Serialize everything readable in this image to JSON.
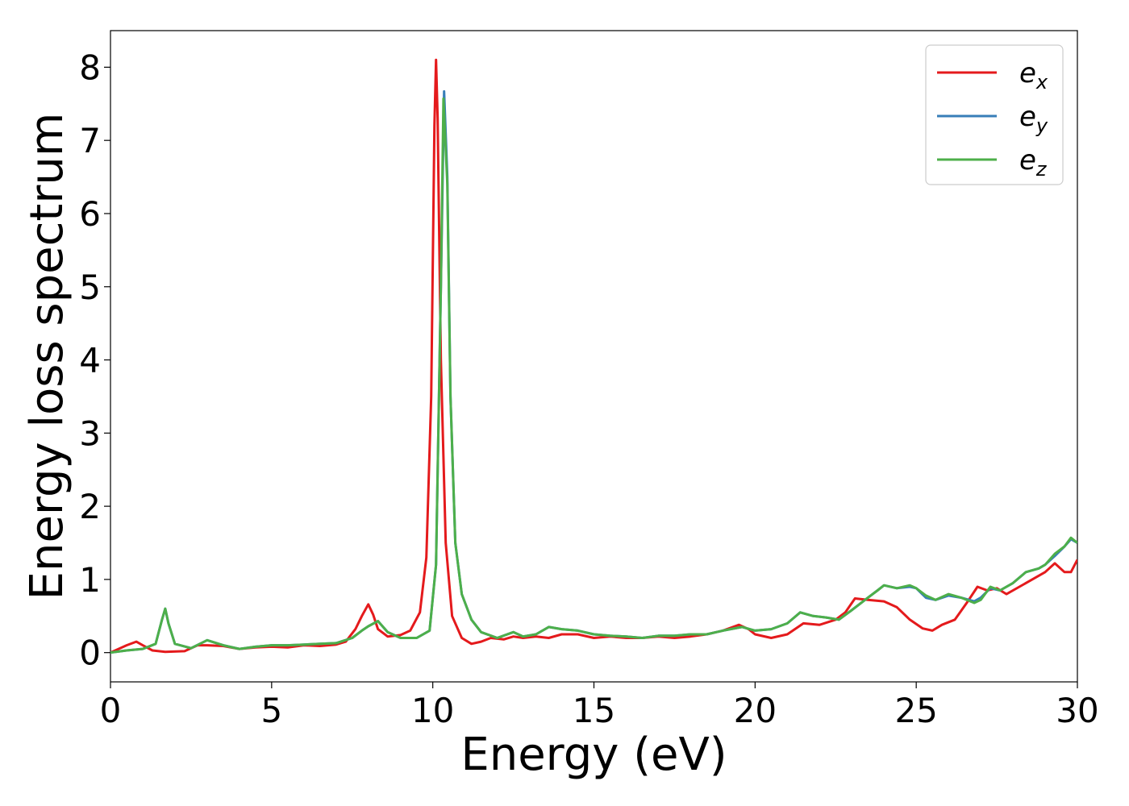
{
  "chart_data": {
    "type": "line",
    "xlabel": "Energy (eV)",
    "ylabel": "Energy loss spectrum",
    "xlim": [
      0,
      30
    ],
    "ylim": [
      -0.4,
      8.5
    ],
    "xticks": [
      0,
      5,
      10,
      15,
      20,
      25,
      30
    ],
    "yticks": [
      0,
      1,
      2,
      3,
      4,
      5,
      6,
      7,
      8
    ],
    "grid": false,
    "legend_position": "top-right",
    "series": [
      {
        "name": "e_x",
        "label_base": "e",
        "label_sub": "x",
        "color": "#e41a1c",
        "points": [
          [
            0,
            0
          ],
          [
            0.3,
            0.06
          ],
          [
            0.5,
            0.1
          ],
          [
            0.8,
            0.15
          ],
          [
            1.0,
            0.1
          ],
          [
            1.3,
            0.03
          ],
          [
            1.7,
            0.01
          ],
          [
            2.3,
            0.02
          ],
          [
            2.7,
            0.1
          ],
          [
            3.0,
            0.1
          ],
          [
            3.5,
            0.09
          ],
          [
            4.0,
            0.05
          ],
          [
            4.5,
            0.07
          ],
          [
            5.0,
            0.08
          ],
          [
            5.5,
            0.07
          ],
          [
            6.0,
            0.1
          ],
          [
            6.5,
            0.09
          ],
          [
            7.0,
            0.11
          ],
          [
            7.3,
            0.15
          ],
          [
            7.6,
            0.32
          ],
          [
            7.8,
            0.5
          ],
          [
            8.0,
            0.66
          ],
          [
            8.15,
            0.52
          ],
          [
            8.3,
            0.32
          ],
          [
            8.6,
            0.22
          ],
          [
            9.0,
            0.24
          ],
          [
            9.3,
            0.3
          ],
          [
            9.6,
            0.55
          ],
          [
            9.8,
            1.3
          ],
          [
            9.95,
            3.5
          ],
          [
            10.05,
            7.2
          ],
          [
            10.1,
            8.1
          ],
          [
            10.15,
            7.3
          ],
          [
            10.25,
            4.0
          ],
          [
            10.4,
            1.5
          ],
          [
            10.6,
            0.5
          ],
          [
            10.9,
            0.2
          ],
          [
            11.2,
            0.12
          ],
          [
            11.5,
            0.15
          ],
          [
            11.8,
            0.2
          ],
          [
            12.2,
            0.18
          ],
          [
            12.5,
            0.22
          ],
          [
            12.8,
            0.2
          ],
          [
            13.2,
            0.22
          ],
          [
            13.6,
            0.2
          ],
          [
            14.0,
            0.25
          ],
          [
            14.5,
            0.25
          ],
          [
            15.0,
            0.2
          ],
          [
            15.5,
            0.22
          ],
          [
            16.0,
            0.2
          ],
          [
            16.5,
            0.2
          ],
          [
            17.0,
            0.22
          ],
          [
            17.5,
            0.2
          ],
          [
            18.0,
            0.22
          ],
          [
            18.5,
            0.25
          ],
          [
            19.0,
            0.3
          ],
          [
            19.5,
            0.38
          ],
          [
            19.8,
            0.32
          ],
          [
            20.0,
            0.25
          ],
          [
            20.5,
            0.2
          ],
          [
            21.0,
            0.25
          ],
          [
            21.5,
            0.4
          ],
          [
            22.0,
            0.38
          ],
          [
            22.5,
            0.45
          ],
          [
            22.8,
            0.55
          ],
          [
            23.1,
            0.74
          ],
          [
            23.5,
            0.72
          ],
          [
            24.0,
            0.7
          ],
          [
            24.4,
            0.62
          ],
          [
            24.8,
            0.45
          ],
          [
            25.2,
            0.33
          ],
          [
            25.5,
            0.3
          ],
          [
            25.8,
            0.38
          ],
          [
            26.2,
            0.45
          ],
          [
            26.6,
            0.7
          ],
          [
            26.9,
            0.9
          ],
          [
            27.2,
            0.85
          ],
          [
            27.5,
            0.88
          ],
          [
            27.8,
            0.8
          ],
          [
            28.2,
            0.9
          ],
          [
            28.6,
            1.0
          ],
          [
            29.0,
            1.1
          ],
          [
            29.3,
            1.22
          ],
          [
            29.6,
            1.1
          ],
          [
            29.8,
            1.1
          ],
          [
            30.0,
            1.27
          ]
        ]
      },
      {
        "name": "e_y",
        "label_base": "e",
        "label_sub": "y",
        "color": "#377eb8",
        "points": [
          [
            0,
            0
          ],
          [
            0.5,
            0.03
          ],
          [
            1.0,
            0.05
          ],
          [
            1.4,
            0.12
          ],
          [
            1.6,
            0.45
          ],
          [
            1.7,
            0.6
          ],
          [
            1.8,
            0.4
          ],
          [
            2.0,
            0.12
          ],
          [
            2.5,
            0.06
          ],
          [
            3.0,
            0.17
          ],
          [
            3.5,
            0.1
          ],
          [
            4.0,
            0.05
          ],
          [
            4.5,
            0.08
          ],
          [
            5.0,
            0.1
          ],
          [
            5.5,
            0.1
          ],
          [
            6.0,
            0.11
          ],
          [
            6.5,
            0.12
          ],
          [
            7.0,
            0.13
          ],
          [
            7.5,
            0.2
          ],
          [
            7.8,
            0.3
          ],
          [
            8.0,
            0.36
          ],
          [
            8.3,
            0.43
          ],
          [
            8.6,
            0.28
          ],
          [
            9.0,
            0.2
          ],
          [
            9.5,
            0.2
          ],
          [
            9.9,
            0.3
          ],
          [
            10.1,
            1.2
          ],
          [
            10.25,
            5.0
          ],
          [
            10.35,
            7.67
          ],
          [
            10.45,
            6.5
          ],
          [
            10.55,
            3.5
          ],
          [
            10.7,
            1.5
          ],
          [
            10.9,
            0.8
          ],
          [
            11.2,
            0.45
          ],
          [
            11.5,
            0.28
          ],
          [
            12.0,
            0.2
          ],
          [
            12.5,
            0.28
          ],
          [
            12.8,
            0.22
          ],
          [
            13.2,
            0.25
          ],
          [
            13.6,
            0.35
          ],
          [
            14.0,
            0.32
          ],
          [
            14.5,
            0.3
          ],
          [
            15.0,
            0.25
          ],
          [
            15.5,
            0.23
          ],
          [
            16.0,
            0.22
          ],
          [
            16.5,
            0.2
          ],
          [
            17.0,
            0.23
          ],
          [
            17.5,
            0.23
          ],
          [
            18.0,
            0.25
          ],
          [
            18.5,
            0.25
          ],
          [
            19.0,
            0.3
          ],
          [
            19.6,
            0.35
          ],
          [
            20.0,
            0.3
          ],
          [
            20.5,
            0.32
          ],
          [
            21.0,
            0.4
          ],
          [
            21.4,
            0.55
          ],
          [
            21.8,
            0.5
          ],
          [
            22.2,
            0.48
          ],
          [
            22.6,
            0.45
          ],
          [
            23.0,
            0.58
          ],
          [
            23.5,
            0.75
          ],
          [
            23.8,
            0.85
          ],
          [
            24.0,
            0.92
          ],
          [
            24.4,
            0.88
          ],
          [
            24.8,
            0.9
          ],
          [
            25.0,
            0.88
          ],
          [
            25.3,
            0.75
          ],
          [
            25.6,
            0.72
          ],
          [
            26.0,
            0.78
          ],
          [
            26.4,
            0.75
          ],
          [
            26.8,
            0.7
          ],
          [
            27.0,
            0.75
          ],
          [
            27.3,
            0.88
          ],
          [
            27.6,
            0.85
          ],
          [
            28.0,
            0.95
          ],
          [
            28.4,
            1.1
          ],
          [
            28.8,
            1.15
          ],
          [
            29.0,
            1.2
          ],
          [
            29.3,
            1.32
          ],
          [
            29.6,
            1.45
          ],
          [
            29.8,
            1.55
          ],
          [
            30.0,
            1.5
          ]
        ]
      },
      {
        "name": "e_z",
        "label_base": "e",
        "label_sub": "z",
        "color": "#4daf4a",
        "points": [
          [
            0,
            0
          ],
          [
            0.5,
            0.03
          ],
          [
            1.0,
            0.05
          ],
          [
            1.4,
            0.12
          ],
          [
            1.6,
            0.45
          ],
          [
            1.7,
            0.6
          ],
          [
            1.8,
            0.4
          ],
          [
            2.0,
            0.12
          ],
          [
            2.5,
            0.06
          ],
          [
            3.0,
            0.17
          ],
          [
            3.5,
            0.1
          ],
          [
            4.0,
            0.05
          ],
          [
            4.5,
            0.08
          ],
          [
            5.0,
            0.1
          ],
          [
            5.5,
            0.1
          ],
          [
            6.0,
            0.11
          ],
          [
            6.5,
            0.12
          ],
          [
            7.0,
            0.13
          ],
          [
            7.5,
            0.2
          ],
          [
            7.8,
            0.3
          ],
          [
            8.0,
            0.36
          ],
          [
            8.3,
            0.43
          ],
          [
            8.6,
            0.28
          ],
          [
            9.0,
            0.2
          ],
          [
            9.5,
            0.2
          ],
          [
            9.9,
            0.3
          ],
          [
            10.1,
            1.2
          ],
          [
            10.25,
            5.0
          ],
          [
            10.33,
            7.57
          ],
          [
            10.45,
            6.4
          ],
          [
            10.55,
            3.5
          ],
          [
            10.7,
            1.5
          ],
          [
            10.9,
            0.8
          ],
          [
            11.2,
            0.45
          ],
          [
            11.5,
            0.28
          ],
          [
            12.0,
            0.2
          ],
          [
            12.5,
            0.28
          ],
          [
            12.8,
            0.22
          ],
          [
            13.2,
            0.25
          ],
          [
            13.6,
            0.35
          ],
          [
            14.0,
            0.32
          ],
          [
            14.5,
            0.3
          ],
          [
            15.0,
            0.25
          ],
          [
            15.5,
            0.23
          ],
          [
            16.0,
            0.22
          ],
          [
            16.5,
            0.2
          ],
          [
            17.0,
            0.23
          ],
          [
            17.5,
            0.23
          ],
          [
            18.0,
            0.25
          ],
          [
            18.5,
            0.25
          ],
          [
            19.0,
            0.3
          ],
          [
            19.6,
            0.35
          ],
          [
            20.0,
            0.3
          ],
          [
            20.5,
            0.32
          ],
          [
            21.0,
            0.4
          ],
          [
            21.4,
            0.55
          ],
          [
            21.8,
            0.5
          ],
          [
            22.2,
            0.48
          ],
          [
            22.6,
            0.45
          ],
          [
            23.0,
            0.58
          ],
          [
            23.5,
            0.75
          ],
          [
            23.8,
            0.85
          ],
          [
            24.0,
            0.92
          ],
          [
            24.4,
            0.88
          ],
          [
            24.8,
            0.92
          ],
          [
            25.0,
            0.88
          ],
          [
            25.3,
            0.78
          ],
          [
            25.6,
            0.72
          ],
          [
            26.0,
            0.8
          ],
          [
            26.4,
            0.75
          ],
          [
            26.8,
            0.68
          ],
          [
            27.0,
            0.72
          ],
          [
            27.3,
            0.9
          ],
          [
            27.6,
            0.85
          ],
          [
            28.0,
            0.95
          ],
          [
            28.4,
            1.1
          ],
          [
            28.8,
            1.15
          ],
          [
            29.0,
            1.2
          ],
          [
            29.3,
            1.35
          ],
          [
            29.6,
            1.45
          ],
          [
            29.8,
            1.57
          ],
          [
            30.0,
            1.5
          ]
        ]
      }
    ]
  }
}
